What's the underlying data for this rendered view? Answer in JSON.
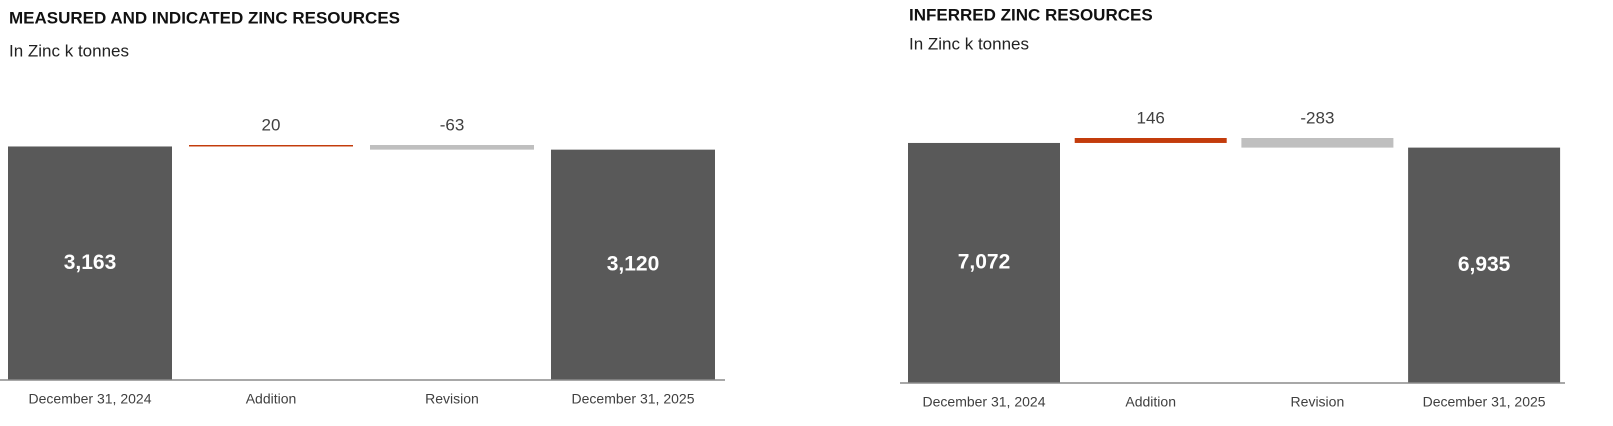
{
  "chart_data": [
    {
      "type": "waterfall",
      "title": "MEASURED AND INDICATED ZINC RESOURCES",
      "subtitle": "In Zinc k tonnes",
      "categories": [
        "December 31, 2024",
        "Addition",
        "Revision",
        "December 31, 2025"
      ],
      "values": [
        3163,
        20,
        -63,
        3120
      ],
      "value_labels": [
        "3,163",
        "20",
        "-63",
        "3,120"
      ],
      "colors": [
        "#595959",
        "#c33c0c",
        "#bfbfbf",
        "#595959"
      ]
    },
    {
      "type": "waterfall",
      "title": "INFERRED ZINC RESOURCES",
      "subtitle": "In Zinc k tonnes",
      "categories": [
        "December 31, 2024",
        "Addition",
        "Revision",
        "December 31, 2025"
      ],
      "values": [
        7072,
        146,
        -283,
        6935
      ],
      "value_labels": [
        "7,072",
        "146",
        "-283",
        "6,935"
      ],
      "colors": [
        "#595959",
        "#c33c0c",
        "#bfbfbf",
        "#595959"
      ]
    }
  ]
}
